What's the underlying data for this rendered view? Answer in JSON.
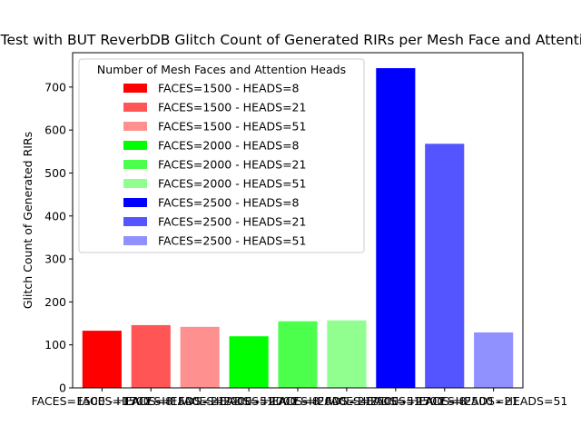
{
  "chart_data": {
    "type": "bar",
    "title": "IEMOCAP Test with BUT ReverbDB Glitch Count of Generated RIRs per Mesh Face and Attention Heads",
    "xlabel": "",
    "ylabel": "Glitch Count of Generated RIRs",
    "ylim": [
      0,
      780
    ],
    "yticks": [
      0,
      100,
      200,
      300,
      400,
      500,
      600,
      700
    ],
    "grid": false,
    "legend": {
      "title": "Number of Mesh Faces and Attention Heads",
      "placement": "top-left"
    },
    "categories": [
      "FACES=1500 - HEADS=8",
      "FACES=1500 - HEADS=21",
      "FACES=1500 - HEADS=51",
      "FACES=2000 - HEADS=8",
      "FACES=2000 - HEADS=21",
      "FACES=2000 - HEADS=51",
      "FACES=2500 - HEADS=8",
      "FACES=2500 - HEADS=21",
      "FACES=2500 - HEADS=51"
    ],
    "values": [
      133,
      146,
      142,
      120,
      155,
      157,
      744,
      568,
      129
    ],
    "colors": [
      "#ff0000",
      "#ff5555",
      "#ff9090",
      "#00ff00",
      "#4dff4d",
      "#90ff90",
      "#0000ff",
      "#5555ff",
      "#9090ff"
    ]
  }
}
